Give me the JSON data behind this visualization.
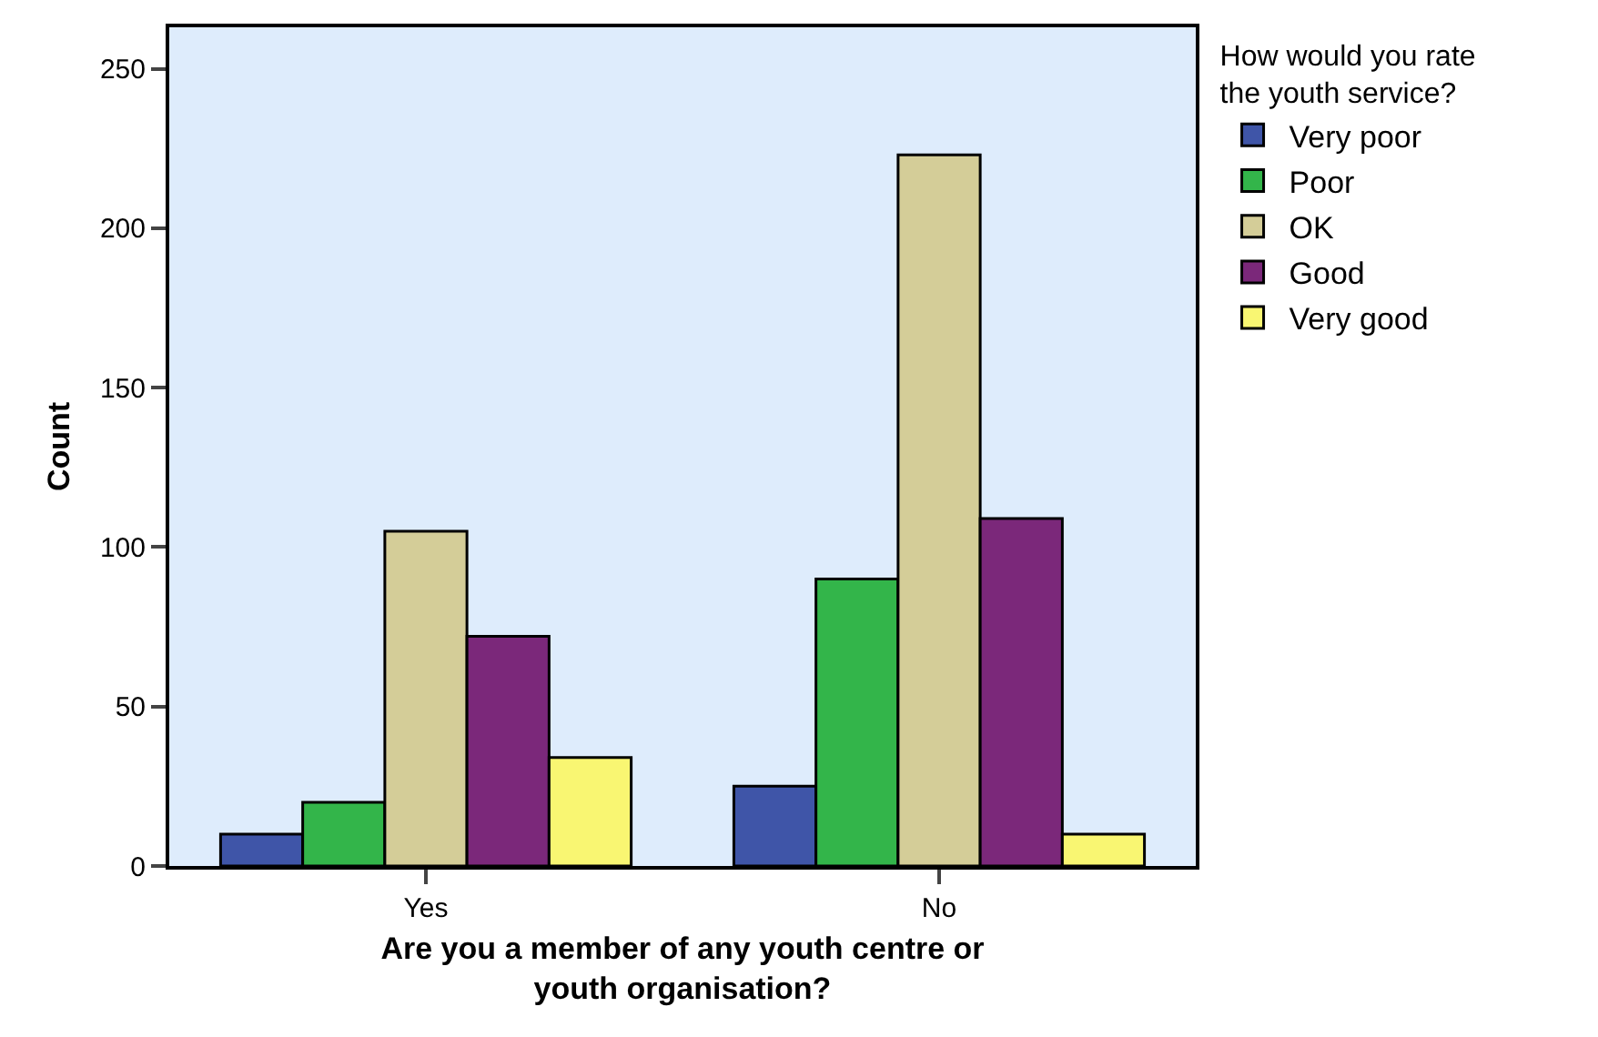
{
  "chart_data": {
    "type": "bar",
    "xlabel": "Are you a member of any youth centre or youth organisation?",
    "ylabel": "Count",
    "legend_title": "How would you rate the youth service?",
    "categories": [
      "Yes",
      "No"
    ],
    "series": [
      {
        "name": "Very poor",
        "color": "#3f55a8",
        "values": [
          10,
          25
        ]
      },
      {
        "name": "Poor",
        "color": "#33b54a",
        "values": [
          20,
          90
        ]
      },
      {
        "name": "OK",
        "color": "#d4cd98",
        "values": [
          105,
          223
        ]
      },
      {
        "name": "Good",
        "color": "#7b287a",
        "values": [
          72,
          109
        ]
      },
      {
        "name": "Very good",
        "color": "#f9f672",
        "values": [
          34,
          10
        ]
      }
    ],
    "ylim": [
      0,
      263
    ],
    "yticks": [
      0,
      50,
      100,
      150,
      200,
      250
    ],
    "grid": false,
    "legend": "top right"
  }
}
